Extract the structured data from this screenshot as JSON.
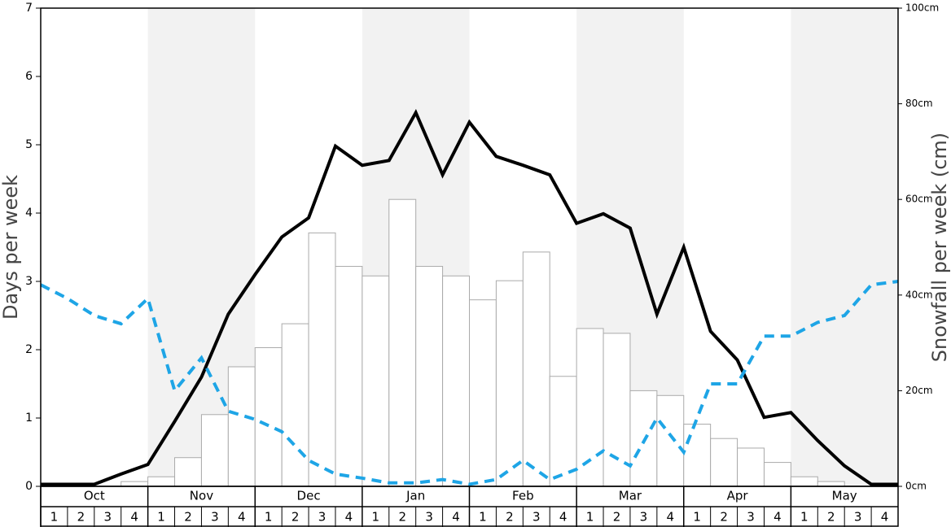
{
  "chart_data": {
    "type": "bar-line",
    "ylabel": "Days per week",
    "y2label": "Snowfall per week (cm)",
    "months": [
      "Oct",
      "Nov",
      "Dec",
      "Jan",
      "Feb",
      "Mar",
      "Apr",
      "May"
    ],
    "weeks": [
      1,
      2,
      3,
      4
    ],
    "shade_color": "#f2f2f2",
    "ylim": [
      0,
      7
    ],
    "yticks": [
      0,
      1,
      2,
      3,
      4,
      5,
      6,
      7
    ],
    "y2lim": [
      0,
      100
    ],
    "y2ticks": [
      {
        "value": 0,
        "label": "0cm"
      },
      {
        "value": 20,
        "label": "20cm"
      },
      {
        "value": 40,
        "label": "40cm"
      },
      {
        "value": 60,
        "label": "60cm"
      },
      {
        "value": 80,
        "label": "80cm"
      },
      {
        "value": 100,
        "label": "100cm"
      }
    ],
    "bars": {
      "axis": "y2",
      "color": "#ffffff",
      "edge": "#aaaaaa",
      "values": [
        0,
        0,
        0,
        1,
        2,
        6,
        15,
        25,
        29,
        34,
        53,
        46,
        44,
        60,
        46,
        44,
        39,
        43,
        49,
        23,
        33,
        32,
        20,
        19,
        13,
        10,
        8,
        5,
        2,
        1,
        0,
        0
      ]
    },
    "series": [
      {
        "color": "#000000",
        "dash": false,
        "values": [
          0.03,
          0.03,
          0.03,
          0.18,
          0.32,
          0.95,
          1.6,
          2.52,
          3.1,
          3.65,
          3.93,
          4.98,
          4.7,
          4.77,
          5.47,
          4.56,
          5.33,
          4.83,
          4.7,
          4.56,
          3.85,
          3.99,
          3.78,
          2.52,
          3.5,
          2.27,
          1.85,
          1.01,
          1.08,
          0.67,
          0.3,
          0.03,
          0.03
        ]
      },
      {
        "color": "#1ea5e6",
        "dash": true,
        "values": [
          2.95,
          2.75,
          2.5,
          2.38,
          2.75,
          1.4,
          1.88,
          1.1,
          0.98,
          0.8,
          0.38,
          0.18,
          0.12,
          0.05,
          0.05,
          0.1,
          0.03,
          0.1,
          0.38,
          0.1,
          0.25,
          0.52,
          0.3,
          1.0,
          0.5,
          1.5,
          1.5,
          2.2,
          2.2,
          2.4,
          2.5,
          2.95,
          3.0
        ]
      }
    ]
  }
}
